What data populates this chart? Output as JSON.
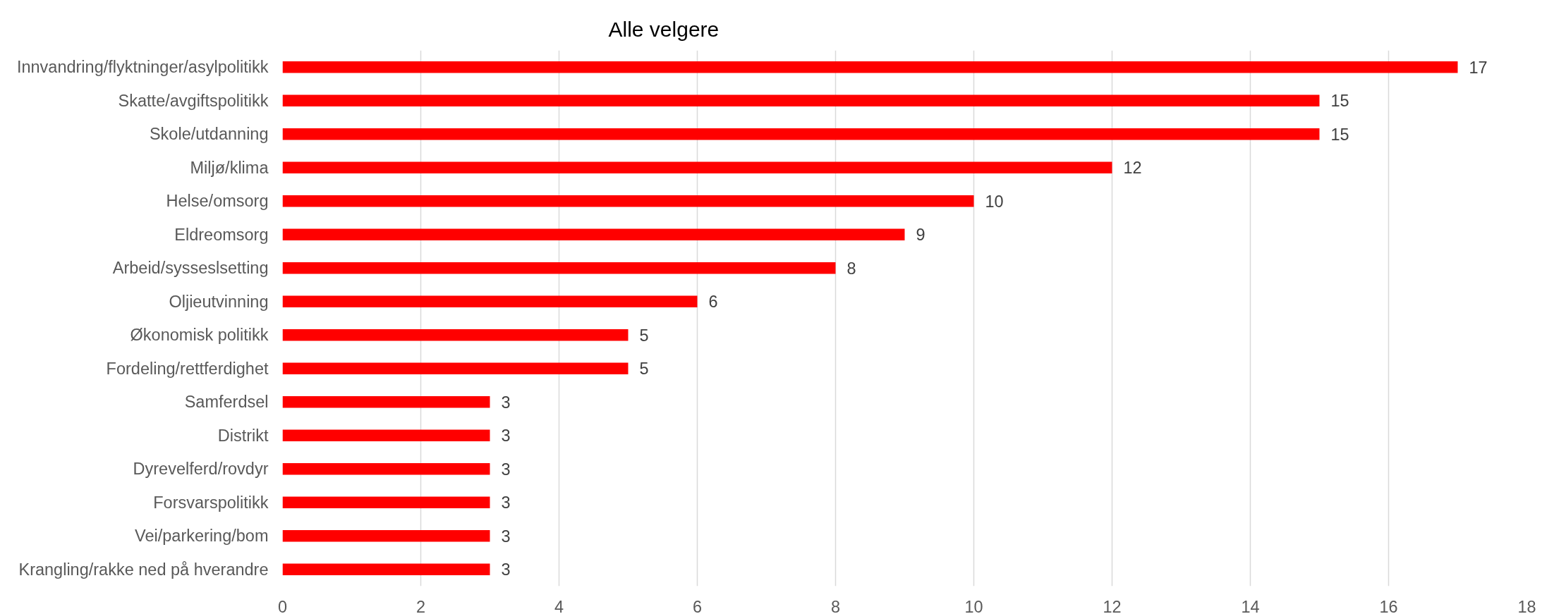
{
  "chart_data": {
    "type": "bar",
    "orientation": "horizontal",
    "title": "Alle velgere",
    "categories": [
      "Innvandring/flyktninger/asylpolitikk",
      "Skatte/avgiftspolitikk",
      "Skole/utdanning",
      "Miljø/klima",
      "Helse/omsorg",
      "Eldreomsorg",
      "Arbeid/sysseslsetting",
      "Oljieutvinning",
      "Økonomisk politikk",
      "Fordeling/rettferdighet",
      "Samferdsel",
      "Distrikt",
      "Dyrevelferd/rovdyr",
      "Forsvarspolitikk",
      "Vei/parkering/bom",
      "Krangling/rakke ned på hverandre"
    ],
    "values": [
      17,
      15,
      15,
      12,
      10,
      9,
      8,
      6,
      5,
      5,
      3,
      3,
      3,
      3,
      3,
      3
    ],
    "color": "#ff0000",
    "xlim": [
      0,
      18
    ],
    "xticks": [
      0,
      2,
      4,
      6,
      8,
      10,
      12,
      14,
      16,
      18
    ],
    "grid": "x",
    "data_labels": true
  }
}
